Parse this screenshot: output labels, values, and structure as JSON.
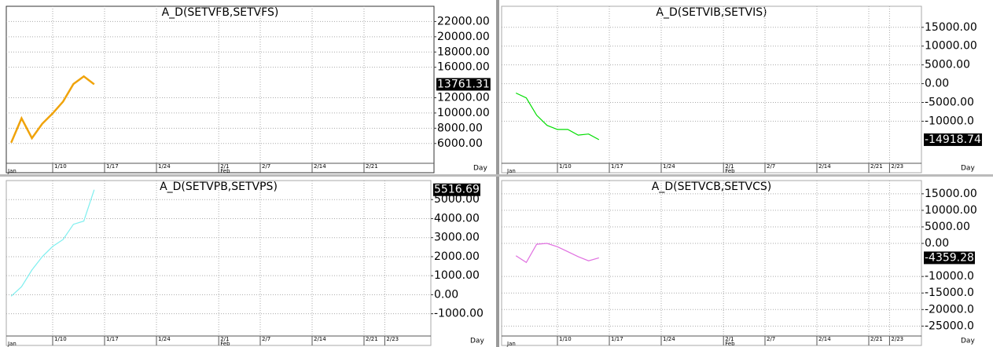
{
  "chart_data": [
    {
      "type": "line",
      "title": "A_D(SETVFB,SETVFS)",
      "x_unit": "Day",
      "months": [
        "Jan",
        "Feb"
      ],
      "x": [
        "1/4",
        "1/5",
        "1/6",
        "1/7",
        "1/10",
        "1/11",
        "1/12",
        "1/13",
        "1/14"
      ],
      "xticks": [
        "1/10",
        "1/17",
        "1/24",
        "2/1",
        "2/7",
        "2/14",
        "2/21"
      ],
      "series": [
        {
          "color": "#f0a30a",
          "values": [
            6100,
            9300,
            6700,
            8600,
            9950,
            11500,
            13800,
            14800,
            13761.31
          ]
        }
      ],
      "ylim": [
        3400,
        24000
      ],
      "yticks": [
        {
          "value": 6000,
          "label": "6000.00"
        },
        {
          "value": 8000,
          "label": "8000.00"
        },
        {
          "value": 10000,
          "label": "10000.00"
        },
        {
          "value": 12000,
          "label": "12000.00"
        },
        {
          "value": 16000,
          "label": "16000.00"
        },
        {
          "value": 18000,
          "label": "18000.00"
        },
        {
          "value": 20000,
          "label": "20000.00"
        },
        {
          "value": 22000,
          "label": "22000.00"
        }
      ],
      "grid": true
    },
    {
      "type": "line",
      "title": "A_D(SETVIB,SETVIS)",
      "x_unit": "Day",
      "months": [
        "Jan",
        "Feb"
      ],
      "x": [
        "1/4",
        "1/5",
        "1/6",
        "1/7",
        "1/10",
        "1/11",
        "1/12",
        "1/13",
        "1/14"
      ],
      "xticks": [
        "1/10",
        "1/17",
        "1/24",
        "2/1",
        "2/7",
        "2/14",
        "2/21",
        "2/23"
      ],
      "series": [
        {
          "color": "#00dd00",
          "values": [
            -2500,
            -3800,
            -8400,
            -11100,
            -12200,
            -12200,
            -13700,
            -13400,
            -14918.74
          ]
        }
      ],
      "ylim": [
        -21200,
        20600
      ],
      "yticks": [
        {
          "value": -10000,
          "label": "-10000.0"
        },
        {
          "value": -5000,
          "label": "-5000.00"
        },
        {
          "value": 0,
          "label": "0.00"
        },
        {
          "value": 5000,
          "label": "5000.00"
        },
        {
          "value": 10000,
          "label": "10000.00"
        },
        {
          "value": 15000,
          "label": "15000.00"
        }
      ],
      "grid": true
    },
    {
      "type": "line",
      "title": "A_D(SETVPB,SETVPS)",
      "x_unit": "Day",
      "months": [
        "Jan",
        "Feb"
      ],
      "x": [
        "1/4",
        "1/5",
        "1/6",
        "1/7",
        "1/10",
        "1/11",
        "1/12",
        "1/13",
        "1/14"
      ],
      "xticks": [
        "1/10",
        "1/17",
        "1/24",
        "2/1",
        "2/7",
        "2/14",
        "2/21",
        "2/23"
      ],
      "series": [
        {
          "color": "#7fefef",
          "values": [
            -80,
            420,
            1300,
            2000,
            2540,
            2900,
            3700,
            3870,
            5516.69
          ]
        }
      ],
      "ylim": [
        -2170,
        6000
      ],
      "yticks": [
        {
          "value": -1000,
          "label": "-1000.00"
        },
        {
          "value": 0,
          "label": "0.00"
        },
        {
          "value": 1000,
          "label": "1000.00"
        },
        {
          "value": 2000,
          "label": "2000.00"
        },
        {
          "value": 3000,
          "label": "3000.00"
        },
        {
          "value": 4000,
          "label": "4000.00"
        },
        {
          "value": 5000,
          "label": "5000.00"
        }
      ],
      "grid": true
    },
    {
      "type": "line",
      "title": "A_D(SETVCB,SETVCS)",
      "x_unit": "Day",
      "months": [
        "Jan",
        "Feb"
      ],
      "x": [
        "1/4",
        "1/5",
        "1/6",
        "1/7",
        "1/10",
        "1/11",
        "1/12",
        "1/13",
        "1/14"
      ],
      "xticks": [
        "1/10",
        "1/17",
        "1/24",
        "2/1",
        "2/7",
        "2/14",
        "2/21",
        "2/23"
      ],
      "series": [
        {
          "color": "#e070e0",
          "values": [
            -3750,
            -5750,
            -250,
            0,
            -1000,
            -2500,
            -4000,
            -5250,
            -4359.28
          ]
        }
      ],
      "ylim": [
        -28000,
        19000
      ],
      "yticks": [
        {
          "value": -25000,
          "label": "-25000.0"
        },
        {
          "value": -20000,
          "label": "-20000.0"
        },
        {
          "value": -15000,
          "label": "-15000.0"
        },
        {
          "value": -10000,
          "label": "-10000.0"
        },
        {
          "value": 0,
          "label": "0.00"
        },
        {
          "value": 5000,
          "label": "5000.00"
        },
        {
          "value": 10000,
          "label": "10000.00"
        },
        {
          "value": 15000,
          "label": "15000.00"
        }
      ],
      "grid": true
    }
  ]
}
